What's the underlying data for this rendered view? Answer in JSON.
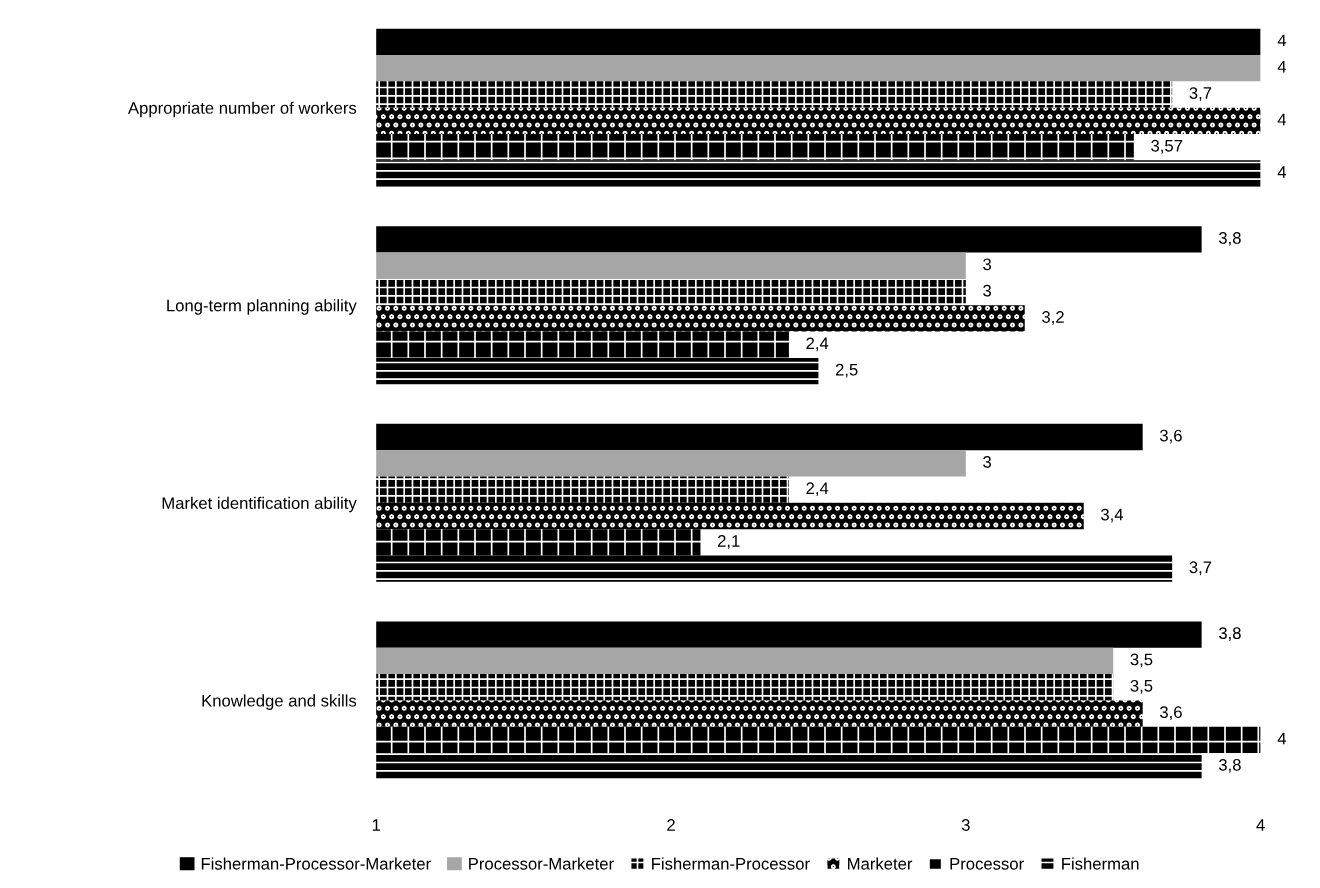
{
  "chart_data": {
    "type": "bar",
    "orientation": "horizontal",
    "categories": [
      "Appropriate number of workers",
      "Long-term planning ability",
      "Market identification ability",
      "Knowledge and skills"
    ],
    "xlim": [
      1,
      4
    ],
    "xticks": [
      1,
      2,
      3,
      4
    ],
    "grid": false,
    "legend": "bottom",
    "series": [
      {
        "name": "Fisherman-Processor-Marketer",
        "color": "#000000",
        "values": [
          4,
          3.8,
          3.6,
          3.8
        ],
        "value_labels": [
          "4",
          "3,8",
          "3,6",
          "3,8"
        ]
      },
      {
        "name": "Processor-Marketer",
        "color": "#a6a6a6",
        "values": [
          4,
          3,
          3,
          3.5
        ],
        "value_labels": [
          "4",
          "3",
          "3",
          "3,5"
        ]
      },
      {
        "name": "Fisherman-Processor",
        "color": "#000000",
        "values": [
          3.7,
          3,
          2.4,
          3.5
        ],
        "value_labels": [
          "3,7",
          "3",
          "2,4",
          "3,5"
        ]
      },
      {
        "name": "Marketer",
        "color": "#000000",
        "values": [
          4,
          3.2,
          3.4,
          3.6
        ],
        "value_labels": [
          "4",
          "3,2",
          "3,4",
          "3,6"
        ]
      },
      {
        "name": "Processor",
        "color": "#000000",
        "values": [
          3.57,
          2.4,
          2.1,
          4
        ],
        "value_labels": [
          "3,57",
          "2,4",
          "2,1",
          "4"
        ]
      },
      {
        "name": "Fisherman",
        "color": "#000000",
        "values": [
          4,
          2.5,
          3.7,
          3.8
        ],
        "value_labels": [
          "4",
          "2,5",
          "3,7",
          "3,8"
        ]
      }
    ]
  }
}
